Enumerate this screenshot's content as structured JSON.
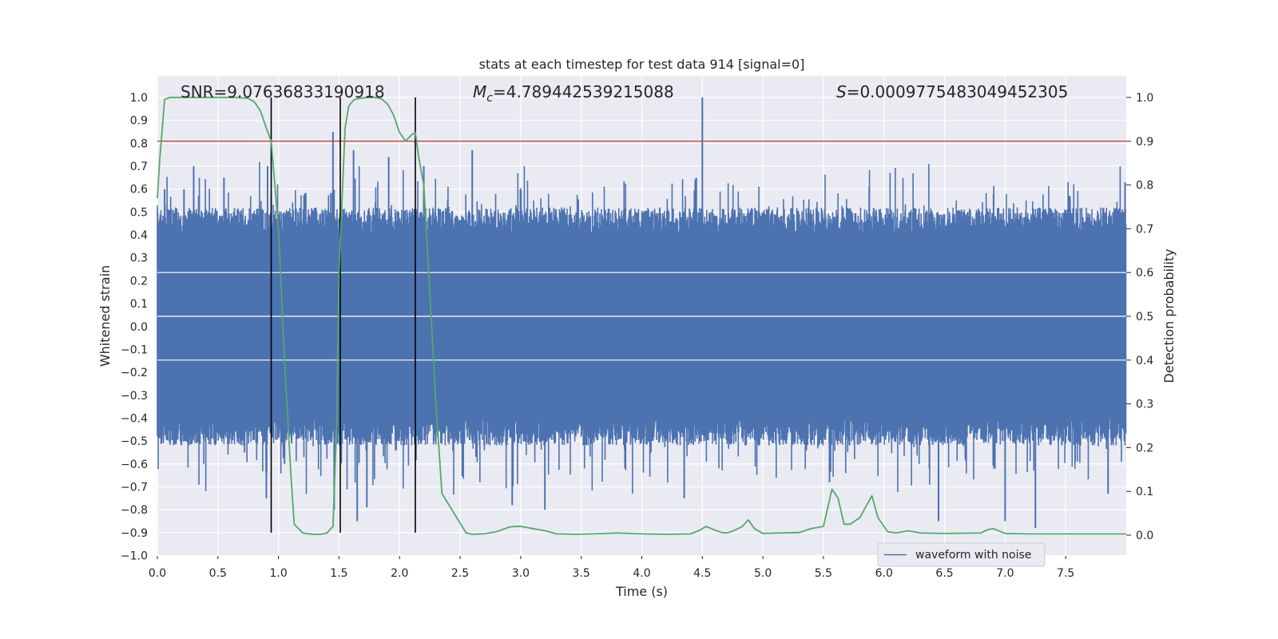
{
  "chart_data": {
    "type": "line",
    "title": "stats at each timestep for test data 914 [signal=0]",
    "xlabel": "Time (s)",
    "ylabel": "Whitened strain",
    "y2label": "Detection probability",
    "xlim": [
      0.0,
      8.0
    ],
    "ylim": [
      -1.0,
      1.05
    ],
    "y2lim": [
      -0.05,
      1.05
    ],
    "x_ticks": [
      0.0,
      0.5,
      1.0,
      1.5,
      2.0,
      2.5,
      3.0,
      3.5,
      4.0,
      4.5,
      5.0,
      5.5,
      6.0,
      6.5,
      7.0,
      7.5
    ],
    "x_tick_labels": [
      "0.0",
      "0.5",
      "1.0",
      "1.5",
      "2.0",
      "2.5",
      "3.0",
      "3.5",
      "4.0",
      "4.5",
      "5.0",
      "5.5",
      "6.0",
      "6.5",
      "7.0",
      "7.5"
    ],
    "y_ticks": [
      -1.0,
      -0.9,
      -0.8,
      -0.7,
      -0.6,
      -0.5,
      -0.4,
      -0.3,
      -0.2,
      -0.1,
      0.0,
      0.1,
      0.2,
      0.3,
      0.4,
      0.5,
      0.6,
      0.7,
      0.8,
      0.9,
      1.0
    ],
    "y_tick_labels": [
      "−1.0",
      "−0.9",
      "−0.8",
      "−0.7",
      "−0.6",
      "−0.5",
      "−0.4",
      "−0.3",
      "−0.2",
      "−0.1",
      "0.0",
      "0.1",
      "0.2",
      "0.3",
      "0.4",
      "0.5",
      "0.6",
      "0.7",
      "0.8",
      "0.9",
      "1.0"
    ],
    "y2_ticks": [
      0.0,
      0.1,
      0.2,
      0.3,
      0.4,
      0.5,
      0.6,
      0.7,
      0.8,
      0.9,
      1.0
    ],
    "y2_tick_labels": [
      "0.0",
      "0.1",
      "0.2",
      "0.3",
      "0.4",
      "0.5",
      "0.6",
      "0.7",
      "0.8",
      "0.9",
      "1.0"
    ],
    "annotations": {
      "snr": "SNR=9.07636833190918",
      "mc_symbol": "M",
      "mc_sub": "c",
      "mc_value": "=4.789442539215088",
      "s_symbol": "S",
      "s_value": "=0.0009775483049452305"
    },
    "threshold": {
      "axis": "y2",
      "value": 0.9,
      "color": "#c44e52"
    },
    "vertical_lines": {
      "x": [
        0.94,
        1.51,
        2.13
      ],
      "y_from": -0.9,
      "y_to": 1.0,
      "color": "#000000"
    },
    "waveform": {
      "name": "waveform with noise",
      "color": "#4c72b0",
      "core_amplitude": 0.4,
      "spikes": [
        {
          "x": 0.06,
          "y": 0.6
        },
        {
          "x": 0.22,
          "y": 0.6
        },
        {
          "x": 0.3,
          "y": 0.7
        },
        {
          "x": 0.55,
          "y": 0.65
        },
        {
          "x": 0.72,
          "y": -0.55
        },
        {
          "x": 0.9,
          "y": -0.75
        },
        {
          "x": 0.91,
          "y": 0.7
        },
        {
          "x": 1.05,
          "y": -0.6
        },
        {
          "x": 1.45,
          "y": 0.85
        },
        {
          "x": 1.46,
          "y": -0.8
        },
        {
          "x": 1.62,
          "y": 0.77
        },
        {
          "x": 1.65,
          "y": -0.85
        },
        {
          "x": 1.73,
          "y": -0.79
        },
        {
          "x": 1.91,
          "y": 0.74
        },
        {
          "x": 2.2,
          "y": 0.7
        },
        {
          "x": 2.6,
          "y": 0.77
        },
        {
          "x": 2.93,
          "y": -0.78
        },
        {
          "x": 3.2,
          "y": -0.8
        },
        {
          "x": 4.5,
          "y": 1.0
        },
        {
          "x": 4.45,
          "y": 0.65
        },
        {
          "x": 4.35,
          "y": -0.75
        },
        {
          "x": 5.55,
          "y": -0.68
        },
        {
          "x": 6.45,
          "y": -0.85
        },
        {
          "x": 7.0,
          "y": -0.85
        },
        {
          "x": 7.25,
          "y": -0.88
        },
        {
          "x": 7.85,
          "y": -0.73
        },
        {
          "x": 7.99,
          "y": 0.63
        }
      ]
    },
    "probability": {
      "name": "Detection probability",
      "color": "#55a868",
      "x": [
        0.0,
        0.02,
        0.06,
        0.1,
        0.2,
        0.35,
        0.5,
        0.65,
        0.75,
        0.8,
        0.85,
        0.9,
        0.94,
        1.0,
        1.05,
        1.1,
        1.13,
        1.2,
        1.28,
        1.35,
        1.4,
        1.45,
        1.48,
        1.5,
        1.55,
        1.58,
        1.62,
        1.65,
        1.7,
        1.75,
        1.8,
        1.85,
        1.9,
        1.95,
        2.0,
        2.05,
        2.1,
        2.13,
        2.16,
        2.2,
        2.3,
        2.35,
        2.45,
        2.55,
        2.6,
        2.7,
        2.8,
        2.9,
        2.95,
        3.0,
        3.1,
        3.2,
        3.3,
        3.45,
        3.6,
        3.8,
        4.0,
        4.2,
        4.4,
        4.47,
        4.53,
        4.6,
        4.66,
        4.7,
        4.75,
        4.83,
        4.88,
        4.93,
        5.0,
        5.15,
        5.3,
        5.4,
        5.5,
        5.57,
        5.62,
        5.67,
        5.72,
        5.8,
        5.9,
        5.95,
        6.03,
        6.1,
        6.2,
        6.3,
        6.5,
        6.8,
        6.85,
        6.9,
        7.0,
        7.2,
        7.5,
        8.0
      ],
      "y": [
        0.77,
        0.86,
        0.995,
        1.0,
        1.0,
        1.0,
        1.0,
        1.0,
        0.998,
        0.99,
        0.97,
        0.93,
        0.9,
        0.7,
        0.4,
        0.15,
        0.025,
        0.005,
        0.002,
        0.002,
        0.005,
        0.02,
        0.25,
        0.6,
        0.93,
        0.98,
        0.994,
        0.997,
        0.999,
        1.0,
        1.0,
        0.997,
        0.985,
        0.96,
        0.92,
        0.9,
        0.915,
        0.92,
        0.86,
        0.8,
        0.3,
        0.095,
        0.05,
        0.005,
        0.002,
        0.003,
        0.008,
        0.018,
        0.02,
        0.02,
        0.015,
        0.01,
        0.003,
        0.002,
        0.003,
        0.005,
        0.003,
        0.002,
        0.003,
        0.01,
        0.02,
        0.012,
        0.006,
        0.005,
        0.009,
        0.02,
        0.035,
        0.015,
        0.004,
        0.005,
        0.006,
        0.015,
        0.02,
        0.105,
        0.085,
        0.025,
        0.025,
        0.04,
        0.09,
        0.04,
        0.008,
        0.005,
        0.01,
        0.005,
        0.004,
        0.005,
        0.012,
        0.015,
        0.004,
        0.003,
        0.003,
        0.003
      ]
    },
    "legend": {
      "entries": [
        "waveform with noise"
      ],
      "placement": "lower-right"
    },
    "grid": true
  }
}
